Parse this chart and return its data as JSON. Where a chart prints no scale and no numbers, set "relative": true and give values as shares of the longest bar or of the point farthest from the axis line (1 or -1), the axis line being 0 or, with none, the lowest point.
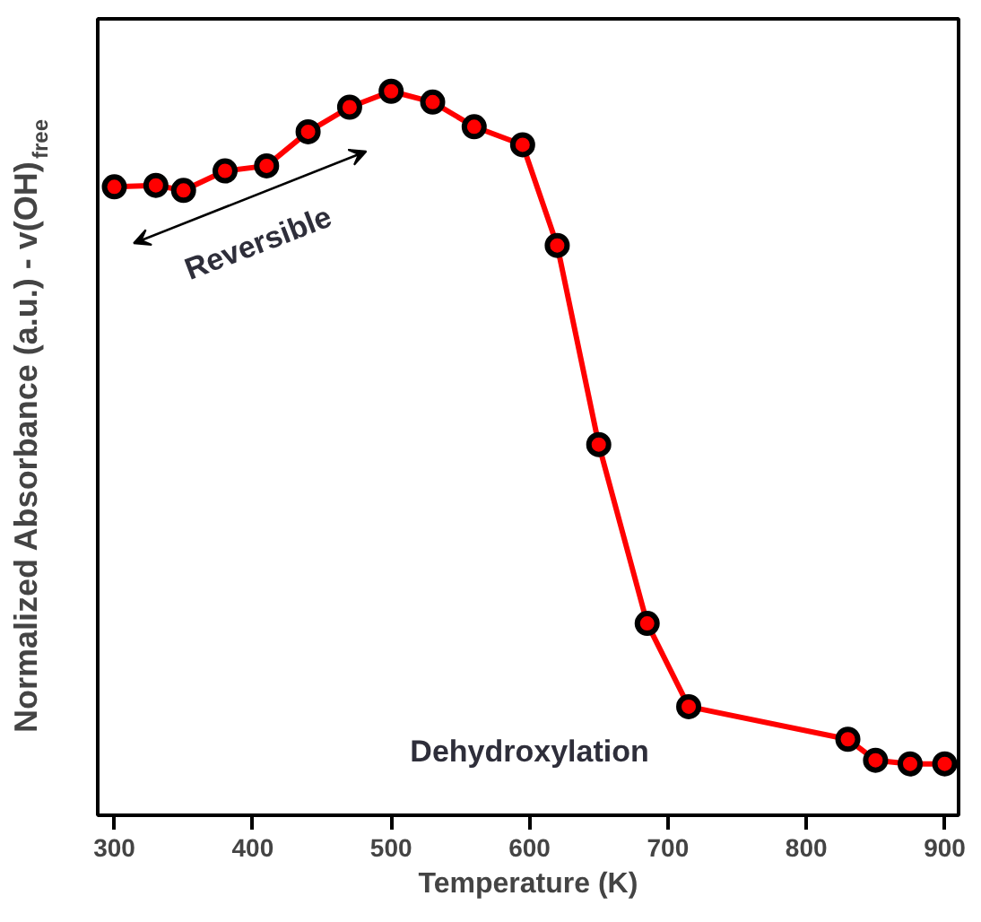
{
  "chart_data": {
    "type": "line",
    "relative": true,
    "xlabel": "Temperature (K)",
    "ylabel": "Normalized Absorbance (a.u.) - v(OH)$_{free}$",
    "x": [
      300,
      330,
      350,
      380,
      410,
      440,
      470,
      500,
      530,
      560,
      595,
      620,
      650,
      685,
      715,
      830,
      850,
      875,
      900
    ],
    "series": [
      {
        "color": "#ff0000",
        "values": [
          0.868,
          0.87,
          0.863,
          0.89,
          0.897,
          0.944,
          0.978,
          1,
          0.985,
          0.951,
          0.926,
          0.787,
          0.512,
          0.265,
          0.15,
          0.105,
          0.076,
          0.071,
          0.071
        ]
      }
    ],
    "xlim": [
      288,
      910
    ],
    "xticks": [
      300,
      400,
      500,
      600,
      700,
      800,
      900
    ],
    "annotations": [
      "Reversible",
      "Dehydroxylation"
    ],
    "marker": "circle",
    "line_style": "solid",
    "grid": false
  }
}
